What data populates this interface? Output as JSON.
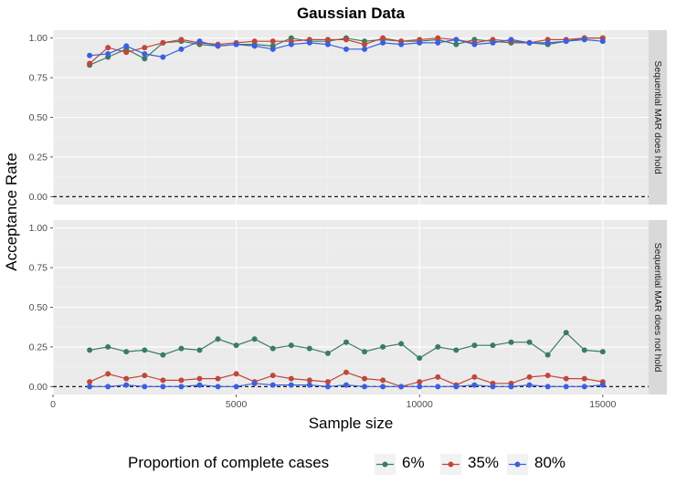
{
  "chart_data": {
    "type": "line",
    "title": "Gaussian Data",
    "xlabel": "Sample size",
    "ylabel": "Acceptance Rate",
    "xlim": [
      0,
      16250
    ],
    "ylim": [
      -0.05,
      1.05
    ],
    "x_ticks": [
      0,
      5000,
      10000,
      15000
    ],
    "y_ticks": [
      0.0,
      0.25,
      0.5,
      0.75,
      1.0
    ],
    "y_tick_labels": [
      "0.00",
      "0.25",
      "0.50",
      "0.75",
      "1.00"
    ],
    "reference_line_y": 0,
    "grid": true,
    "legend": {
      "title": "Proportion of complete cases",
      "placement": "bottom",
      "entries": [
        {
          "label": "6%",
          "color": "#3a7d5e"
        },
        {
          "label": "35%",
          "color": "#c0473a"
        },
        {
          "label": "80%",
          "color": "#3c5fe0"
        }
      ]
    },
    "x": [
      1000,
      1500,
      2000,
      2500,
      3000,
      3500,
      4000,
      4500,
      5000,
      5500,
      6000,
      6500,
      7000,
      7500,
      8000,
      8500,
      9000,
      9500,
      10000,
      10500,
      11000,
      11500,
      12000,
      12500,
      13000,
      13500,
      14000,
      14500,
      15000
    ],
    "panels": [
      {
        "label": "Sequential MAR does hold",
        "series": [
          {
            "name": "6%",
            "values": [
              0.83,
              0.88,
              0.93,
              0.87,
              0.97,
              0.98,
              0.96,
              0.95,
              0.96,
              0.96,
              0.95,
              1.0,
              0.98,
              0.98,
              1.0,
              0.98,
              0.99,
              0.98,
              0.98,
              0.99,
              0.96,
              0.99,
              0.98,
              0.97,
              0.97,
              0.96,
              0.98,
              1.0,
              1.0
            ]
          },
          {
            "name": "35%",
            "values": [
              0.84,
              0.94,
              0.91,
              0.94,
              0.97,
              0.99,
              0.97,
              0.96,
              0.97,
              0.98,
              0.98,
              0.98,
              0.99,
              0.99,
              0.99,
              0.96,
              1.0,
              0.98,
              0.99,
              1.0,
              0.99,
              0.97,
              0.99,
              0.98,
              0.97,
              0.99,
              0.99,
              1.0,
              1.0
            ]
          },
          {
            "name": "80%",
            "values": [
              0.89,
              0.9,
              0.95,
              0.9,
              0.88,
              0.93,
              0.98,
              0.95,
              0.96,
              0.95,
              0.93,
              0.96,
              0.97,
              0.96,
              0.93,
              0.93,
              0.97,
              0.96,
              0.97,
              0.97,
              0.99,
              0.96,
              0.97,
              0.99,
              0.97,
              0.97,
              0.98,
              0.99,
              0.98
            ]
          }
        ]
      },
      {
        "label": "Sequential MAR does not hold",
        "series": [
          {
            "name": "6%",
            "values": [
              0.23,
              0.25,
              0.22,
              0.23,
              0.2,
              0.24,
              0.23,
              0.3,
              0.26,
              0.3,
              0.24,
              0.26,
              0.24,
              0.21,
              0.28,
              0.22,
              0.25,
              0.27,
              0.18,
              0.25,
              0.23,
              0.26,
              0.26,
              0.28,
              0.28,
              0.2,
              0.34,
              0.23,
              0.22
            ]
          },
          {
            "name": "35%",
            "values": [
              0.03,
              0.08,
              0.05,
              0.07,
              0.04,
              0.04,
              0.05,
              0.05,
              0.08,
              0.03,
              0.07,
              0.05,
              0.04,
              0.03,
              0.09,
              0.05,
              0.04,
              0.0,
              0.03,
              0.06,
              0.01,
              0.06,
              0.02,
              0.02,
              0.06,
              0.07,
              0.05,
              0.05,
              0.03
            ]
          },
          {
            "name": "80%",
            "values": [
              0.0,
              0.0,
              0.01,
              0.0,
              0.0,
              0.0,
              0.01,
              0.0,
              0.0,
              0.02,
              0.01,
              0.01,
              0.01,
              0.0,
              0.01,
              0.0,
              0.0,
              0.0,
              0.0,
              0.0,
              0.0,
              0.01,
              0.0,
              0.0,
              0.01,
              0.0,
              0.0,
              0.0,
              0.01
            ]
          }
        ]
      }
    ]
  }
}
